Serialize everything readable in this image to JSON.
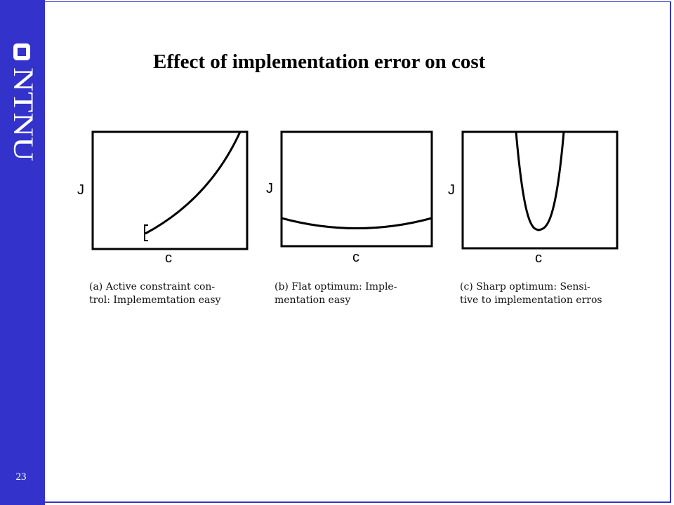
{
  "sidebar": {
    "logo_text": "NTNU",
    "page_number": "23",
    "color": "#3333cc"
  },
  "slide": {
    "title": "Effect of implementation error on cost"
  },
  "panels": [
    {
      "y_label": "J",
      "x_label": "c",
      "caption_line1": "(a)  Active  constraint  con-",
      "caption_line2": "trol: Implememtation easy"
    },
    {
      "y_label": "J",
      "x_label": "c",
      "caption_line1": "(b)  Flat  optimum:   Imple-",
      "caption_line2": "mentation easy"
    },
    {
      "y_label": "J",
      "x_label": "c",
      "caption_line1": "(c)  Sharp  optimum:   Sensi-",
      "caption_line2": "tive to implementation erros"
    }
  ]
}
